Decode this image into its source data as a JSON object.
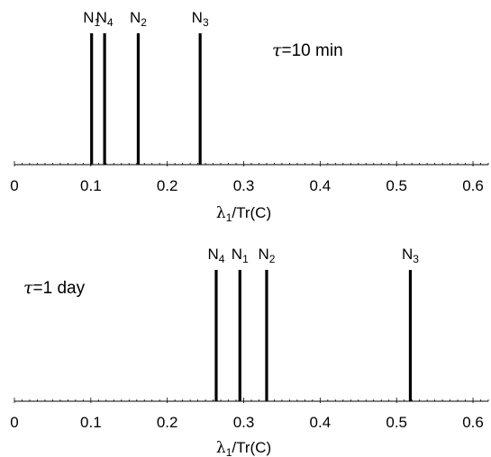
{
  "chart_data": [
    {
      "type": "spike",
      "annotation": "τ=10 min",
      "annotation_parts": {
        "symbol": "τ",
        "rest": "=10 min"
      },
      "xlabel_parts": {
        "var": "λ",
        "sub": "1",
        "rest": "/Tr(C)"
      },
      "xlim": [
        0,
        0.62
      ],
      "xticks": [
        0,
        0.1,
        0.2,
        0.3,
        0.4,
        0.5,
        0.6
      ],
      "xtick_labels": [
        "0",
        "0.1",
        "0.2",
        "0.3",
        "0.4",
        "0.5",
        "0.6"
      ],
      "minor_tick_step": 0.01,
      "grid": false,
      "spikes": [
        {
          "label": "N",
          "sub": "1",
          "x": 0.101
        },
        {
          "label": "N",
          "sub": "4",
          "x": 0.118
        },
        {
          "label": "N",
          "sub": "2",
          "x": 0.162
        },
        {
          "label": "N",
          "sub": "3",
          "x": 0.243
        }
      ]
    },
    {
      "type": "spike",
      "annotation": "τ=1 day",
      "annotation_parts": {
        "symbol": "τ",
        "rest": "=1 day"
      },
      "xlabel_parts": {
        "var": "λ",
        "sub": "1",
        "rest": "/Tr(C)"
      },
      "xlim": [
        0,
        0.62
      ],
      "xticks": [
        0,
        0.1,
        0.2,
        0.3,
        0.4,
        0.5,
        0.6
      ],
      "xtick_labels": [
        "0",
        "0.1",
        "0.2",
        "0.3",
        "0.4",
        "0.5",
        "0.6"
      ],
      "minor_tick_step": 0.01,
      "grid": false,
      "spikes": [
        {
          "label": "N",
          "sub": "4",
          "x": 0.264
        },
        {
          "label": "N",
          "sub": "1",
          "x": 0.295
        },
        {
          "label": "N",
          "sub": "2",
          "x": 0.33
        },
        {
          "label": "N",
          "sub": "3",
          "x": 0.518
        }
      ]
    }
  ]
}
